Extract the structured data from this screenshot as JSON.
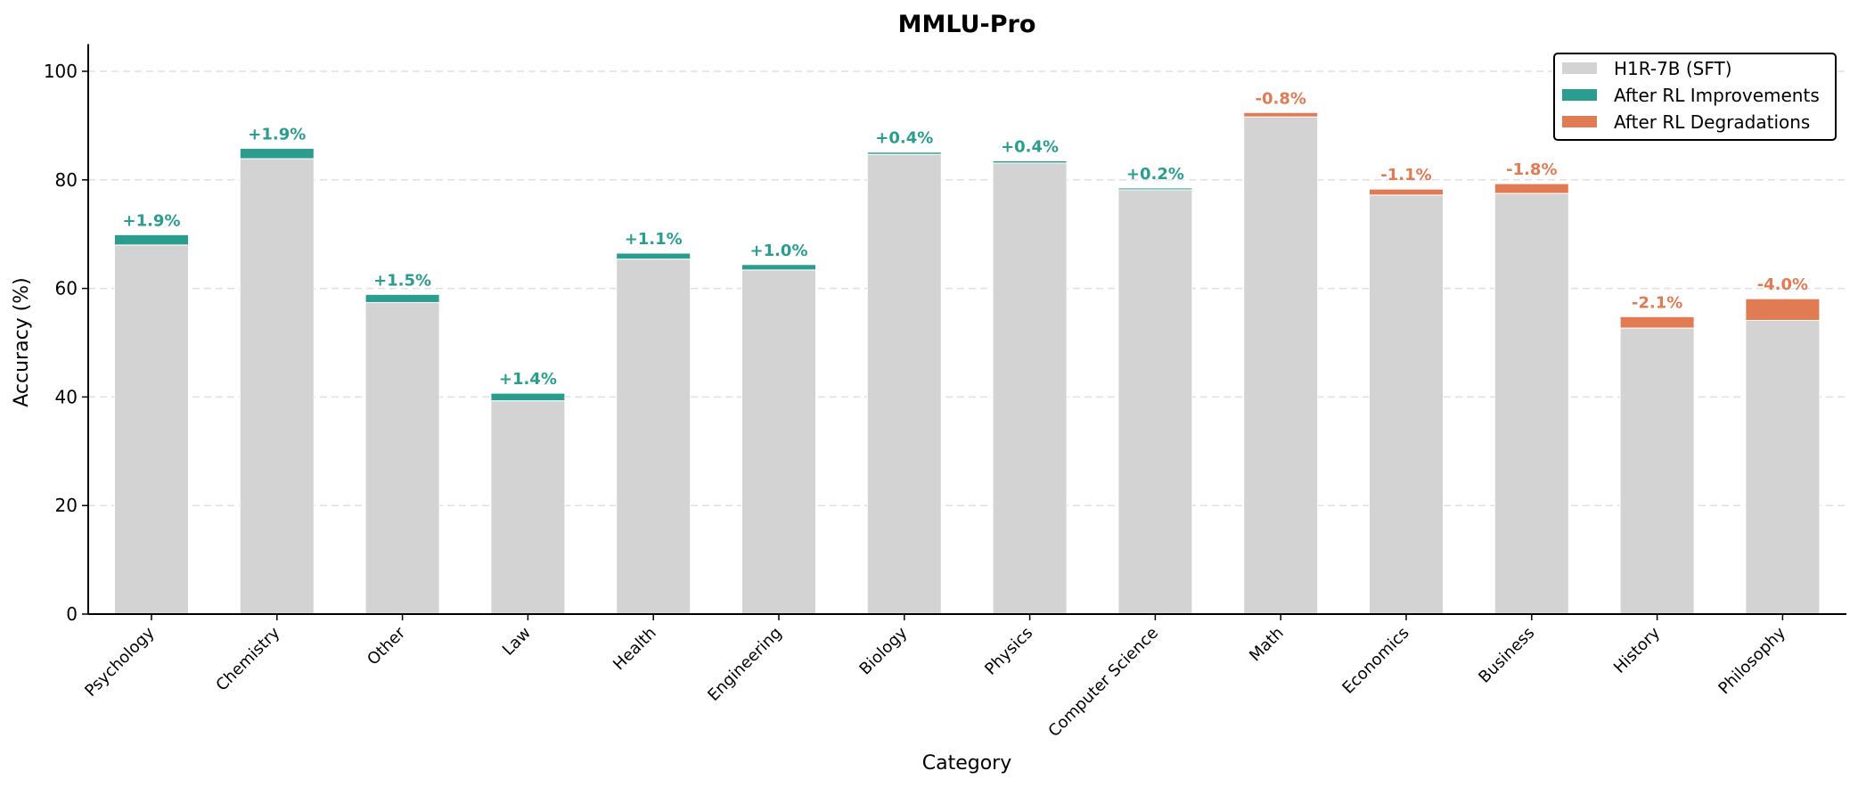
{
  "chart_data": {
    "type": "bar",
    "stacked": true,
    "title": "MMLU-Pro",
    "xlabel": "Category",
    "ylabel": "Accuracy (%)",
    "ylim": [
      0,
      105
    ],
    "yticks": [
      0,
      20,
      40,
      60,
      80,
      100
    ],
    "grid": {
      "y": true,
      "style": "dashed"
    },
    "legend_position": "upper right",
    "categories": [
      "Psychology",
      "Chemistry",
      "Other",
      "Law",
      "Health",
      "Engineering",
      "Biology",
      "Physics",
      "Computer Science",
      "Math",
      "Economics",
      "Business",
      "History",
      "Philosophy"
    ],
    "series": [
      {
        "name": "H1R-7B (SFT)",
        "color": "#d3d3d3",
        "values": [
          68.0,
          83.9,
          57.4,
          39.3,
          65.4,
          63.4,
          84.7,
          83.1,
          78.3,
          91.6,
          77.2,
          77.5,
          52.7,
          54.1
        ]
      },
      {
        "name": "After RL Improvements",
        "color": "#2a9d8f",
        "values": [
          1.9,
          1.9,
          1.5,
          1.4,
          1.1,
          1.0,
          0.4,
          0.4,
          0.2,
          0,
          0,
          0,
          0,
          0
        ]
      },
      {
        "name": "After RL Degradations",
        "color": "#e07b54",
        "values": [
          0,
          0,
          0,
          0,
          0,
          0,
          0,
          0,
          0,
          0.8,
          1.1,
          1.8,
          2.1,
          4.0
        ]
      }
    ],
    "annotations": [
      "+1.9%",
      "+1.9%",
      "+1.5%",
      "+1.4%",
      "+1.1%",
      "+1.0%",
      "+0.4%",
      "+0.4%",
      "+0.2%",
      "-0.8%",
      "-1.1%",
      "-1.8%",
      "-2.1%",
      "-4.0%"
    ]
  },
  "colors": {
    "base": "#d3d3d3",
    "improve": "#2a9d8f",
    "degrade": "#e07b54",
    "grid": "#e0e0e0",
    "axis": "#000000"
  }
}
